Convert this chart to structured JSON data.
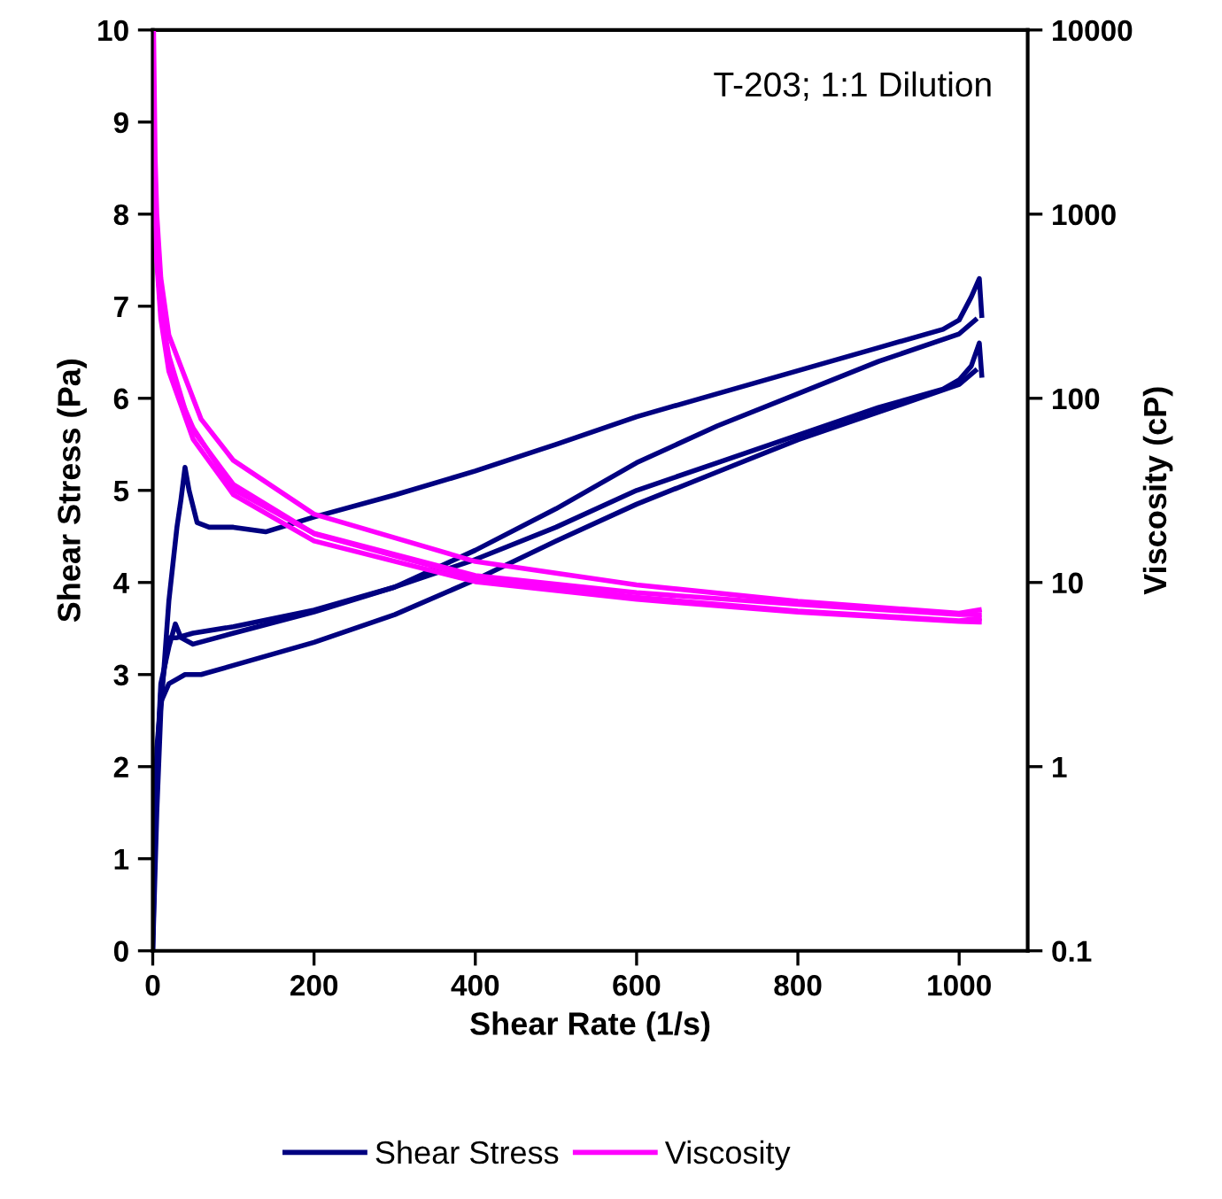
{
  "chart_data": {
    "type": "line",
    "xlabel": "Shear Rate (1/s)",
    "ylabel": "Shear Stress (Pa)",
    "y2label": "Viscosity (cP)",
    "annotations": [
      "T-203; 1:1 Dilution"
    ],
    "xlim": [
      0,
      1085
    ],
    "xticks": [
      0,
      200,
      400,
      600,
      800,
      1000
    ],
    "ylim": [
      0,
      10
    ],
    "yticks": [
      0,
      1,
      2,
      3,
      4,
      5,
      6,
      7,
      8,
      9,
      10
    ],
    "y2lim": [
      0.1,
      10000
    ],
    "y2ticks": [
      0.1,
      1,
      10,
      100,
      1000,
      10000
    ],
    "log": "y2",
    "grid": false,
    "legend": "bottom",
    "marker": "none",
    "line_style": "solid",
    "series": [
      {
        "name": "Shear Stress",
        "color": "#000080",
        "x": [
          0,
          5,
          10,
          20,
          30,
          35,
          40,
          45,
          55,
          70,
          100,
          140,
          200,
          300,
          400,
          500,
          600,
          700,
          800,
          900,
          980,
          1000,
          1015,
          1025,
          1028
        ],
        "values": [
          0,
          1.5,
          2.6,
          3.8,
          4.6,
          4.9,
          5.25,
          5.0,
          4.65,
          4.6,
          4.6,
          4.55,
          4.71,
          4.95,
          5.21,
          5.5,
          5.8,
          6.05,
          6.3,
          6.55,
          6.75,
          6.85,
          7.1,
          7.3,
          6.9
        ]
      },
      {
        "color": "#000080",
        "x": [
          1020,
          1000,
          900,
          800,
          700,
          600,
          500,
          400,
          300,
          200,
          100,
          50,
          30,
          20,
          15,
          10,
          5,
          0
        ],
        "values": [
          6.85,
          6.7,
          6.4,
          6.05,
          5.7,
          5.3,
          4.8,
          4.35,
          3.95,
          3.7,
          3.52,
          3.45,
          3.4,
          3.4,
          3.1,
          2.8,
          2.0,
          0.2
        ]
      },
      {
        "color": "#000080",
        "x": [
          0,
          5,
          10,
          20,
          28,
          35,
          50,
          100,
          200,
          300,
          400,
          500,
          600,
          700,
          800,
          900,
          980,
          1000,
          1015,
          1025,
          1028
        ],
        "values": [
          0.2,
          2.0,
          2.9,
          3.3,
          3.55,
          3.4,
          3.33,
          3.45,
          3.68,
          3.95,
          4.25,
          4.6,
          5.0,
          5.3,
          5.6,
          5.9,
          6.1,
          6.2,
          6.35,
          6.6,
          6.25
        ]
      },
      {
        "color": "#000080",
        "x": [
          1020,
          1000,
          900,
          800,
          700,
          600,
          500,
          400,
          300,
          200,
          100,
          60,
          40,
          20,
          10,
          5,
          0
        ],
        "values": [
          6.3,
          6.15,
          5.85,
          5.55,
          5.2,
          4.85,
          4.45,
          4.03,
          3.65,
          3.35,
          3.1,
          3.0,
          3.0,
          2.9,
          2.7,
          2.2,
          0
        ]
      },
      {
        "name": "Viscosity",
        "color": "#ff00ff",
        "axis": "y2",
        "x": [
          1,
          3,
          5,
          10,
          20,
          40,
          60,
          100,
          200,
          400,
          600,
          800,
          1000,
          1025
        ],
        "values": [
          10000,
          2000,
          1000,
          450,
          220,
          130,
          77,
          46,
          23.5,
          13,
          9.7,
          7.9,
          6.8,
          7.1
        ]
      },
      {
        "color": "#ff00ff",
        "axis": "y2",
        "x": [
          1025,
          1000,
          800,
          600,
          400,
          200,
          100,
          50,
          30,
          20,
          10,
          5
        ],
        "values": [
          6.7,
          6.7,
          7.6,
          8.8,
          10.9,
          18.5,
          32,
          69,
          110,
          160,
          300,
          600
        ]
      },
      {
        "color": "#ff00ff",
        "axis": "y2",
        "x": [
          5,
          10,
          20,
          40,
          50,
          100,
          200,
          400,
          600,
          800,
          1000,
          1025
        ],
        "values": [
          600,
          300,
          170,
          87,
          67,
          34,
          18.4,
          10.6,
          8.3,
          7.0,
          6.2,
          6.4
        ]
      },
      {
        "color": "#ff00ff",
        "axis": "y2",
        "x": [
          1025,
          1000,
          800,
          600,
          400,
          200,
          100,
          50,
          20,
          10,
          5,
          2
        ],
        "values": [
          6.1,
          6.15,
          6.9,
          8.1,
          10.1,
          16.8,
          30,
          60,
          140,
          270,
          550,
          1500
        ]
      }
    ]
  }
}
